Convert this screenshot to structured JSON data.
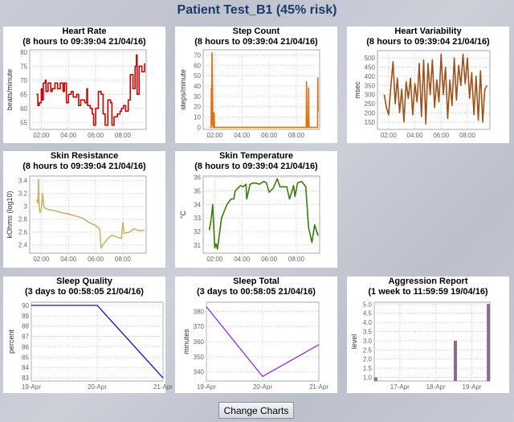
{
  "page_title": "Patient Test_B1 (45% risk)",
  "change_charts_label": "Change Charts",
  "chart_data": [
    {
      "type": "step",
      "title": "Heart Rate",
      "subtitle": "(8 hours to 09:39:04 21/04/16)",
      "ylabel": "beats/minute",
      "color": "#cc0000",
      "xlim": [
        "01:09",
        "09:43"
      ],
      "xticks": [
        "02:00",
        "04:00",
        "06:00",
        "08:00"
      ],
      "ylim": [
        52.5,
        80.8
      ],
      "yticks": [
        55,
        60,
        65,
        70,
        75,
        80
      ],
      "points": [
        [
          "01:39",
          65
        ],
        [
          "01:45",
          61
        ],
        [
          "01:51",
          62
        ],
        [
          "02:00",
          67
        ],
        [
          "02:03",
          63
        ],
        [
          "02:09",
          69
        ],
        [
          "02:18",
          70
        ],
        [
          "02:21",
          66
        ],
        [
          "02:30",
          69
        ],
        [
          "02:42",
          66
        ],
        [
          "02:48",
          67
        ],
        [
          "03:00",
          69
        ],
        [
          "03:12",
          67
        ],
        [
          "03:24",
          69
        ],
        [
          "03:36",
          66
        ],
        [
          "03:42",
          69
        ],
        [
          "03:51",
          62
        ],
        [
          "04:00",
          65
        ],
        [
          "04:12",
          66
        ],
        [
          "04:21",
          64
        ],
        [
          "04:36",
          65
        ],
        [
          "04:45",
          61
        ],
        [
          "04:54",
          63
        ],
        [
          "05:12",
          62
        ],
        [
          "05:21",
          67
        ],
        [
          "05:24",
          61
        ],
        [
          "05:36",
          60
        ],
        [
          "05:45",
          58
        ],
        [
          "05:51",
          54
        ],
        [
          "06:00",
          60
        ],
        [
          "06:12",
          66
        ],
        [
          "06:24",
          65
        ],
        [
          "06:33",
          58
        ],
        [
          "06:42",
          54
        ],
        [
          "06:54",
          63
        ],
        [
          "07:06",
          62
        ],
        [
          "07:12",
          54
        ],
        [
          "07:21",
          57
        ],
        [
          "07:36",
          58
        ],
        [
          "07:48",
          59
        ],
        [
          "07:54",
          60
        ],
        [
          "08:03",
          61
        ],
        [
          "08:12",
          59
        ],
        [
          "08:24",
          63
        ],
        [
          "08:33",
          72
        ],
        [
          "08:45",
          67
        ],
        [
          "08:54",
          75
        ],
        [
          "09:00",
          79
        ],
        [
          "09:03",
          65
        ],
        [
          "09:12",
          75
        ],
        [
          "09:24",
          73
        ],
        [
          "09:36",
          76
        ]
      ]
    },
    {
      "type": "line",
      "title": "Step Count",
      "subtitle": "(8 hours to 09:39:04 21/04/16)",
      "ylabel": "steps/minute",
      "color": "#e07010",
      "xlim": [
        "01:09",
        "09:43"
      ],
      "xticks": [
        "02:00",
        "04:00",
        "06:00",
        "08:00"
      ],
      "ylim": [
        -2,
        75
      ],
      "yticks": [
        0,
        10,
        20,
        30,
        40,
        50,
        60,
        70
      ],
      "points": [
        [
          "01:39",
          0
        ],
        [
          "01:44",
          0
        ],
        [
          "01:45",
          38
        ],
        [
          "01:46",
          3
        ],
        [
          "01:48",
          72
        ],
        [
          "01:50",
          42
        ],
        [
          "01:52",
          0
        ],
        [
          "01:56",
          0
        ],
        [
          "01:57",
          14
        ],
        [
          "01:59",
          0
        ],
        [
          "08:44",
          0
        ],
        [
          "08:45",
          44
        ],
        [
          "08:47",
          10
        ],
        [
          "08:48",
          0
        ],
        [
          "08:53",
          0
        ],
        [
          "08:54",
          38
        ],
        [
          "08:56",
          0
        ],
        [
          "09:34",
          0
        ],
        [
          "09:35",
          48
        ],
        [
          "09:36",
          15
        ]
      ]
    },
    {
      "type": "line",
      "title": "Heart Variability",
      "subtitle": "(8 hours to 09:39:04 21/04/16)",
      "ylabel": "msec",
      "color": "#a0501a",
      "xlim": [
        "01:09",
        "09:43"
      ],
      "xticks": [
        "02:00",
        "04:00",
        "06:00",
        "08:00"
      ],
      "ylim": [
        110,
        540
      ],
      "yticks": [
        150,
        200,
        250,
        300,
        350,
        400,
        450,
        500
      ],
      "points": [
        [
          "01:40",
          300
        ],
        [
          "01:50",
          230
        ],
        [
          "02:00",
          190
        ],
        [
          "02:10",
          340
        ],
        [
          "02:20",
          480
        ],
        [
          "02:30",
          250
        ],
        [
          "02:40",
          390
        ],
        [
          "02:50",
          200
        ],
        [
          "03:00",
          330
        ],
        [
          "03:10",
          150
        ],
        [
          "03:20",
          370
        ],
        [
          "03:30",
          280
        ],
        [
          "03:40",
          390
        ],
        [
          "03:50",
          190
        ],
        [
          "04:00",
          360
        ],
        [
          "04:10",
          260
        ],
        [
          "04:20",
          470
        ],
        [
          "04:30",
          180
        ],
        [
          "04:40",
          490
        ],
        [
          "04:50",
          140
        ],
        [
          "05:00",
          470
        ],
        [
          "05:10",
          300
        ],
        [
          "05:20",
          490
        ],
        [
          "05:30",
          230
        ],
        [
          "05:40",
          380
        ],
        [
          "05:50",
          260
        ],
        [
          "06:00",
          520
        ],
        [
          "06:10",
          300
        ],
        [
          "06:20",
          450
        ],
        [
          "06:30",
          170
        ],
        [
          "06:40",
          380
        ],
        [
          "06:50",
          240
        ],
        [
          "07:00",
          500
        ],
        [
          "07:10",
          270
        ],
        [
          "07:20",
          460
        ],
        [
          "07:30",
          350
        ],
        [
          "07:40",
          520
        ],
        [
          "07:50",
          360
        ],
        [
          "08:00",
          500
        ],
        [
          "08:10",
          280
        ],
        [
          "08:20",
          420
        ],
        [
          "08:30",
          190
        ],
        [
          "08:40",
          400
        ],
        [
          "08:50",
          160
        ],
        [
          "09:00",
          430
        ],
        [
          "09:10",
          150
        ],
        [
          "09:20",
          330
        ],
        [
          "09:30",
          350
        ]
      ]
    },
    {
      "type": "line",
      "title": "Skin Resistance",
      "subtitle": "(8 hours to 09:39:04 21/04/16)",
      "ylabel": "kOhms (log10)",
      "color": "#c8b46a",
      "xlim": [
        "01:09",
        "09:43"
      ],
      "xticks": [
        "02:00",
        "04:00",
        "06:00",
        "08:00"
      ],
      "ylim": [
        2.27,
        3.47
      ],
      "yticks": [
        2.4,
        2.6,
        2.8,
        3.0,
        3.2,
        3.4
      ],
      "points": [
        [
          "01:39",
          3.1
        ],
        [
          "01:45",
          3.05
        ],
        [
          "01:48",
          3.42
        ],
        [
          "01:51",
          3.0
        ],
        [
          "01:54",
          2.9
        ],
        [
          "02:00",
          2.95
        ],
        [
          "02:06",
          3.2
        ],
        [
          "02:12",
          2.98
        ],
        [
          "02:30",
          2.95
        ],
        [
          "03:00",
          2.93
        ],
        [
          "03:30",
          2.9
        ],
        [
          "04:00",
          2.88
        ],
        [
          "04:30",
          2.85
        ],
        [
          "05:00",
          2.82
        ],
        [
          "05:30",
          2.75
        ],
        [
          "06:00",
          2.7
        ],
        [
          "06:18",
          2.65
        ],
        [
          "06:24",
          2.35
        ],
        [
          "06:36",
          2.42
        ],
        [
          "06:54",
          2.5
        ],
        [
          "07:12",
          2.55
        ],
        [
          "07:36",
          2.52
        ],
        [
          "07:54",
          2.5
        ],
        [
          "08:00",
          2.75
        ],
        [
          "08:06",
          2.58
        ],
        [
          "08:30",
          2.6
        ],
        [
          "08:48",
          2.65
        ],
        [
          "09:12",
          2.62
        ],
        [
          "09:36",
          2.63
        ]
      ]
    },
    {
      "type": "line",
      "title": "Skin Temperature",
      "subtitle": "(8 hours to 09:39:04 21/04/16)",
      "ylabel": "°C",
      "color": "#3a7a10",
      "xlim": [
        "01:09",
        "09:43"
      ],
      "xticks": [
        "02:00",
        "04:00",
        "06:00",
        "08:00"
      ],
      "ylim": [
        30.4,
        36.1
      ],
      "yticks": [
        31,
        32,
        33,
        34,
        35,
        36
      ],
      "points": [
        [
          "01:36",
          32.1
        ],
        [
          "01:45",
          33
        ],
        [
          "01:51",
          34
        ],
        [
          "02:00",
          30.8
        ],
        [
          "02:06",
          31.1
        ],
        [
          "02:12",
          30.7
        ],
        [
          "02:30",
          33
        ],
        [
          "02:54",
          34
        ],
        [
          "03:12",
          34.4
        ],
        [
          "03:24",
          34.4
        ],
        [
          "03:30",
          35
        ],
        [
          "03:54",
          35.4
        ],
        [
          "04:06",
          35.3
        ],
        [
          "04:18",
          35.5
        ],
        [
          "04:21",
          34.4
        ],
        [
          "04:36",
          35.5
        ],
        [
          "04:54",
          35.6
        ],
        [
          "05:18",
          35.5
        ],
        [
          "05:36",
          35.7
        ],
        [
          "05:48",
          35.6
        ],
        [
          "06:00",
          34.9
        ],
        [
          "06:18",
          35.2
        ],
        [
          "06:36",
          35.9
        ],
        [
          "06:48",
          35.3
        ],
        [
          "07:18",
          35.3
        ],
        [
          "07:30",
          34.4
        ],
        [
          "07:48",
          35.4
        ],
        [
          "07:54",
          34.6
        ],
        [
          "08:06",
          35.6
        ],
        [
          "08:24",
          35.7
        ],
        [
          "08:42",
          35.3
        ],
        [
          "08:54",
          32.3
        ],
        [
          "09:09",
          31.2
        ],
        [
          "09:21",
          32.5
        ],
        [
          "09:36",
          31.7
        ]
      ]
    },
    {
      "type": "line",
      "title": "Sleep Quality",
      "subtitle": "(3 days to 00:58:05 21/04/16)",
      "ylabel": "percent",
      "color": "#1010c0",
      "categories": [
        "19-Apr",
        "20-Apr",
        "21-Apr"
      ],
      "ylim": [
        82.7,
        90.3
      ],
      "yticks": [
        83,
        84,
        85,
        86,
        87,
        88,
        89,
        90
      ],
      "values": [
        90,
        90,
        83
      ]
    },
    {
      "type": "line",
      "title": "Sleep Total",
      "subtitle": "(3 days to 00:58:05 21/04/16)",
      "ylabel": "minutes",
      "color": "#8a2be2",
      "categories": [
        "19-Apr",
        "20-Apr",
        "21-Apr"
      ],
      "ylim": [
        334,
        386
      ],
      "yticks": [
        340,
        350,
        360,
        370,
        380
      ],
      "values": [
        383,
        337,
        358
      ]
    },
    {
      "type": "bar",
      "title": "Aggression Report",
      "subtitle": "(1 week to 11:59:59 19/04/16)",
      "ylabel": "level",
      "color": "#8a6a8a",
      "xlim": [
        "2016-04-16T07:00",
        "2016-04-19T12:00"
      ],
      "xticks": [
        "17-Apr",
        "18-Apr",
        "19-Apr"
      ],
      "ylim": [
        0.8,
        5.1
      ],
      "yticks": [
        1.0,
        1.5,
        2.0,
        2.5,
        3.0,
        3.5,
        4.0,
        4.5,
        5.0
      ],
      "bars": [
        [
          "2016-04-16T08:00",
          1
        ],
        [
          "2016-04-18T13:00",
          3
        ],
        [
          "2016-04-19T11:00",
          5
        ]
      ]
    }
  ]
}
